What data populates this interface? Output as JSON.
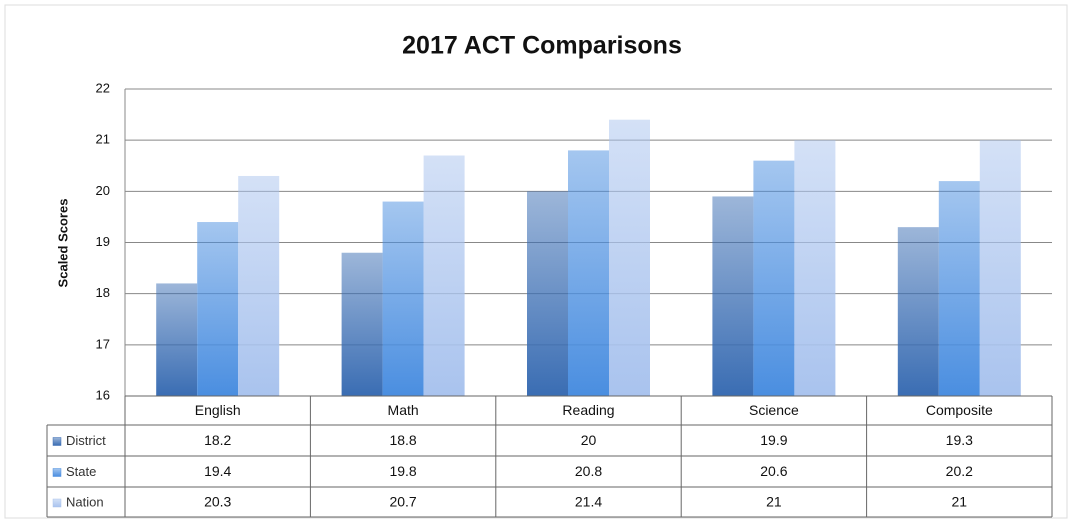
{
  "chart_data": {
    "type": "bar",
    "title": "2017 ACT Comparisons",
    "y_label": "Scaled Scores",
    "categories": [
      "English",
      "Math",
      "Reading",
      "Science",
      "Composite"
    ],
    "series": [
      {
        "name": "District",
        "color": "#3a6db3",
        "values": [
          18.2,
          18.8,
          20,
          19.9,
          19.3
        ]
      },
      {
        "name": "State",
        "color": "#4a8ee0",
        "values": [
          19.4,
          19.8,
          20.8,
          20.6,
          20.2
        ]
      },
      {
        "name": "Nation",
        "color": "#a9c3ee",
        "values": [
          20.3,
          20.7,
          21.4,
          21,
          21
        ]
      }
    ],
    "ylim": [
      16,
      22
    ],
    "yticks": [
      16,
      17,
      18,
      19,
      20,
      21,
      22
    ],
    "grid": true,
    "data_table": true
  }
}
